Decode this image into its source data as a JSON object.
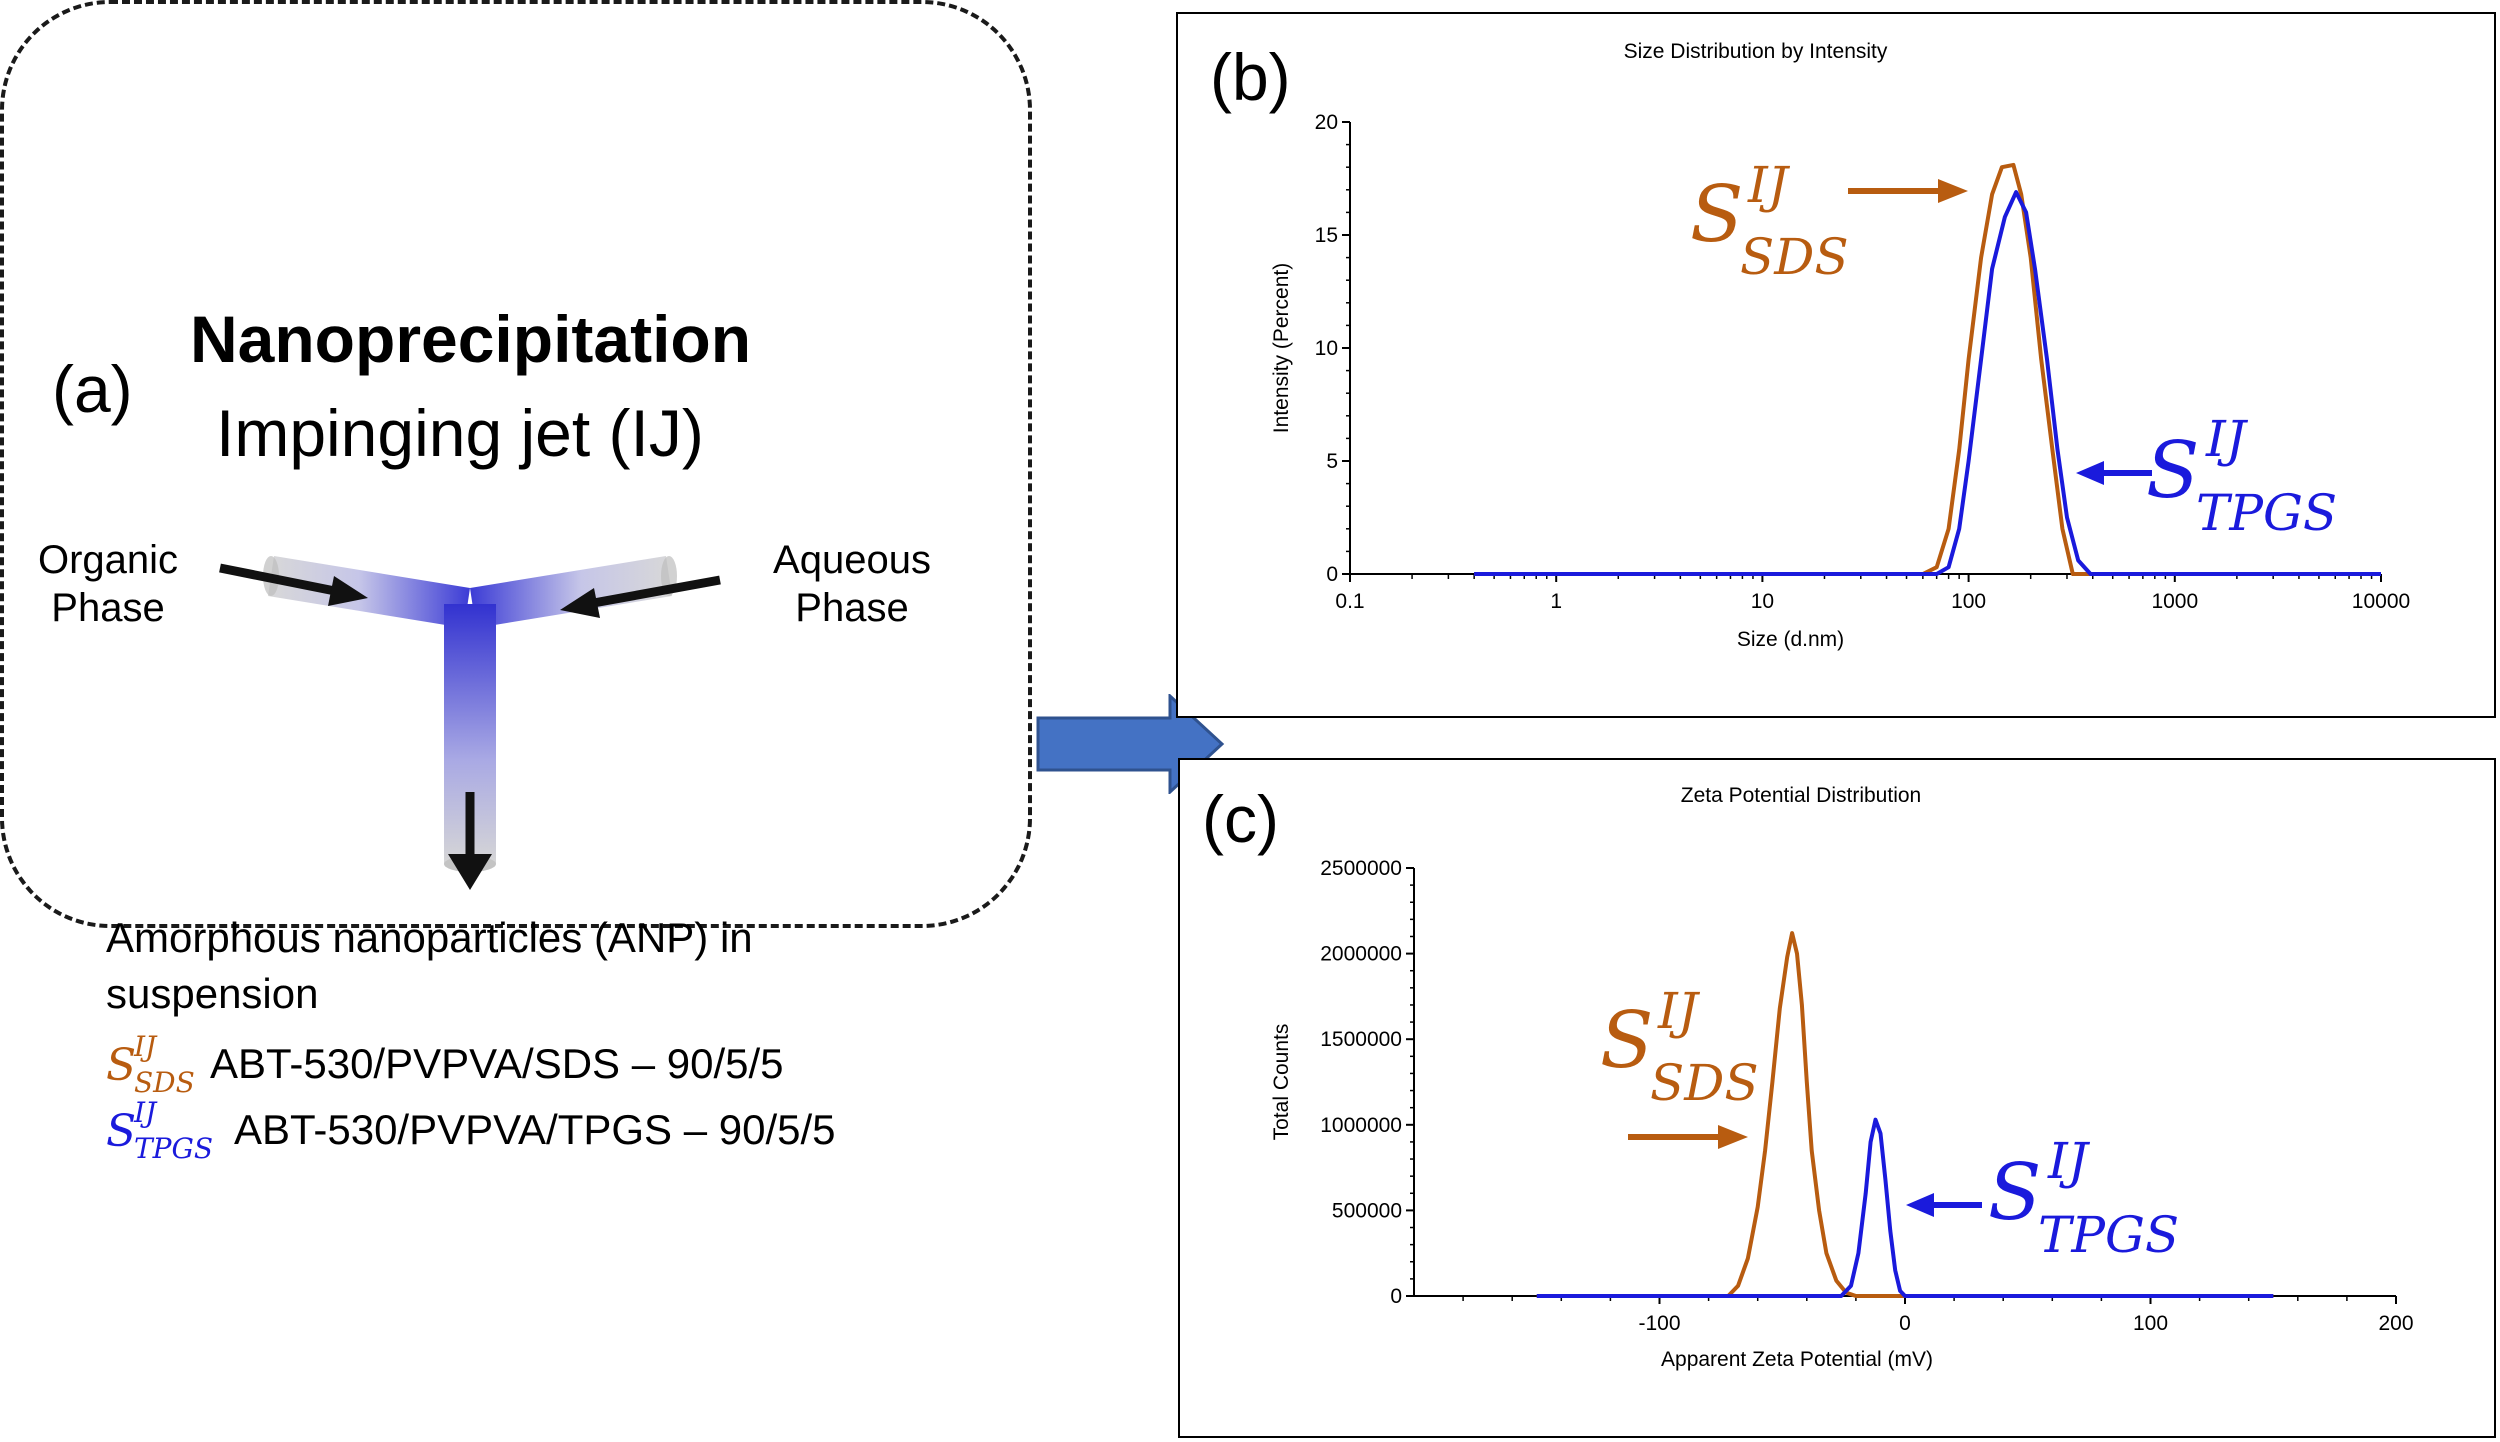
{
  "colors": {
    "sds": "#b85c10",
    "tpgs": "#1a1adc",
    "arrow": "#4472c4",
    "black": "#000000"
  },
  "panel_a": {
    "letter": "(a)",
    "title": "Nanoprecipitation",
    "subtitle": "Impinging jet (IJ)",
    "organic_phase": "Organic\nPhase",
    "aqueous_phase": "Aqueous\nPhase",
    "description": "Amorphous nanoparticles (ANP) in suspension",
    "formulations": [
      {
        "symbol": "S",
        "sup": "IJ",
        "sub": "SDS",
        "text": "ABT-530/PVPVA/SDS – 90/5/5"
      },
      {
        "symbol": "S",
        "sup": "IJ",
        "sub": "TPGS",
        "text": "ABT-530/PVPVA/TPGS – 90/5/5"
      }
    ]
  },
  "panel_b": {
    "letter": "(b)"
  },
  "panel_c": {
    "letter": "(c)"
  },
  "labels": {
    "b_sds": {
      "symbol": "S",
      "sup": "IJ",
      "sub": "SDS"
    },
    "b_tpgs": {
      "symbol": "S",
      "sup": "IJ",
      "sub": "TPGS"
    },
    "c_sds": {
      "symbol": "S",
      "sup": "IJ",
      "sub": "SDS"
    },
    "c_tpgs": {
      "symbol": "S",
      "sup": "IJ",
      "sub": "TPGS"
    }
  },
  "chart_data": [
    {
      "type": "line",
      "title": "Size Distribution by Intensity",
      "xlabel": "Size (d.nm)",
      "ylabel": "Intensity (Percent)",
      "xscale": "log",
      "xlim": [
        0.1,
        10000
      ],
      "ylim": [
        0,
        20
      ],
      "xticks": [
        "0.1",
        "1",
        "10",
        "100",
        "1000",
        "10000"
      ],
      "yticks": [
        "0",
        "5",
        "10",
        "15",
        "20"
      ],
      "series": [
        {
          "key": "sds",
          "name": "S_SDS^IJ",
          "x": [
            0.4,
            60,
            70,
            80,
            90,
            100,
            115,
            130,
            145,
            165,
            180,
            200,
            225,
            255,
            285,
            320,
            10000
          ],
          "y": [
            0,
            0,
            0.3,
            2,
            5.5,
            9.5,
            14,
            16.8,
            18,
            18.1,
            16.8,
            14,
            9.5,
            5.5,
            2,
            0,
            0
          ]
        },
        {
          "key": "tpgs",
          "name": "S_TPGS^IJ",
          "x": [
            0.4,
            70,
            80,
            90,
            100,
            115,
            130,
            150,
            170,
            190,
            210,
            240,
            270,
            300,
            340,
            390,
            10000
          ],
          "y": [
            0,
            0,
            0.3,
            2,
            5,
            9.5,
            13.5,
            15.8,
            16.9,
            16,
            13.5,
            9.5,
            5.5,
            2.5,
            0.6,
            0,
            0
          ]
        }
      ]
    },
    {
      "type": "line",
      "title": "Zeta Potential Distribution",
      "xlabel": "Apparent Zeta Potential (mV)",
      "ylabel": "Total Counts",
      "xlim": [
        -200,
        200
      ],
      "ylim": [
        0,
        2500000
      ],
      "xticks": [
        "-100",
        "0",
        "100",
        "200"
      ],
      "yticks": [
        "0",
        "500000",
        "1000000",
        "1500000",
        "2000000",
        "2500000"
      ],
      "series": [
        {
          "key": "sds",
          "name": "S_SDS^IJ",
          "x": [
            -150,
            -72,
            -68,
            -64,
            -60,
            -57,
            -54,
            -51,
            -48,
            -46,
            -44,
            -42,
            -40,
            -38,
            -35,
            -32,
            -28,
            -24,
            -20,
            150
          ],
          "y": [
            0,
            0,
            60000,
            220000,
            520000,
            850000,
            1250000,
            1680000,
            1980000,
            2120000,
            2000000,
            1700000,
            1250000,
            850000,
            500000,
            250000,
            90000,
            20000,
            0,
            0
          ]
        },
        {
          "key": "tpgs",
          "name": "S_TPGS^IJ",
          "x": [
            -150,
            -26,
            -22,
            -19,
            -16,
            -14,
            -12,
            -10,
            -8,
            -6,
            -4,
            -2,
            0,
            150
          ],
          "y": [
            0,
            0,
            60000,
            250000,
            600000,
            900000,
            1030000,
            950000,
            680000,
            380000,
            150000,
            30000,
            0,
            0
          ]
        }
      ]
    }
  ]
}
